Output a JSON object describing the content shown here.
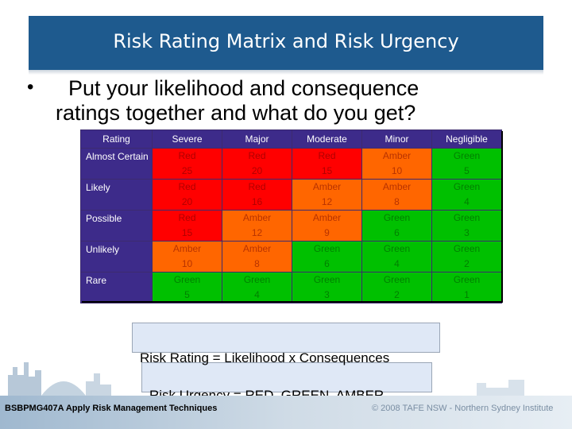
{
  "title": "Risk Rating Matrix and Risk Urgency",
  "bullet": {
    "line1": "Put your likelihood and consequence",
    "line2": "ratings together and what do you get?"
  },
  "matrix": {
    "corner": "Rating",
    "columns": [
      "Severe",
      "Major",
      "Moderate",
      "Minor",
      "Negligible"
    ],
    "rows": [
      {
        "label": "Almost Certain",
        "cells": [
          {
            "rating": "Red",
            "value": "25",
            "level": "red"
          },
          {
            "rating": "Red",
            "value": "20",
            "level": "red"
          },
          {
            "rating": "Red",
            "value": "15",
            "level": "red"
          },
          {
            "rating": "Amber",
            "value": "10",
            "level": "amber"
          },
          {
            "rating": "Green",
            "value": "5",
            "level": "green"
          }
        ]
      },
      {
        "label": "Likely",
        "cells": [
          {
            "rating": "Red",
            "value": "20",
            "level": "red"
          },
          {
            "rating": "Red",
            "value": "16",
            "level": "red"
          },
          {
            "rating": "Amber",
            "value": "12",
            "level": "amber"
          },
          {
            "rating": "Amber",
            "value": "8",
            "level": "amber"
          },
          {
            "rating": "Green",
            "value": "4",
            "level": "green"
          }
        ]
      },
      {
        "label": "Possible",
        "cells": [
          {
            "rating": "Red",
            "value": "15",
            "level": "red"
          },
          {
            "rating": "Amber",
            "value": "12",
            "level": "amber"
          },
          {
            "rating": "Amber",
            "value": "9",
            "level": "amber"
          },
          {
            "rating": "Green",
            "value": "6",
            "level": "green"
          },
          {
            "rating": "Green",
            "value": "3",
            "level": "green"
          }
        ]
      },
      {
        "label": "Unlikely",
        "cells": [
          {
            "rating": "Amber",
            "value": "10",
            "level": "amber"
          },
          {
            "rating": "Amber",
            "value": "8",
            "level": "amber"
          },
          {
            "rating": "Green",
            "value": "6",
            "level": "green"
          },
          {
            "rating": "Green",
            "value": "4",
            "level": "green"
          },
          {
            "rating": "Green",
            "value": "2",
            "level": "green"
          }
        ]
      },
      {
        "label": "Rare",
        "cells": [
          {
            "rating": "Green",
            "value": "5",
            "level": "green"
          },
          {
            "rating": "Green",
            "value": "4",
            "level": "green"
          },
          {
            "rating": "Green",
            "value": "3",
            "level": "green"
          },
          {
            "rating": "Green",
            "value": "2",
            "level": "green"
          },
          {
            "rating": "Green",
            "value": "1",
            "level": "green"
          }
        ]
      }
    ]
  },
  "formula": {
    "rating": "Risk Rating = Likelihood x Consequences",
    "urgency": "Risk Urgency = RED, GREEN, AMBER"
  },
  "footer": {
    "course": "BSBPMG407A Apply Risk Management Techniques",
    "copyright": "© 2008 TAFE NSW - Northern Sydney Institute"
  },
  "colors": {
    "title_bar": "#1e5a8e",
    "header": "#3d2b8a",
    "red": "#ff0000",
    "amber": "#ff6600",
    "green": "#00c000"
  }
}
